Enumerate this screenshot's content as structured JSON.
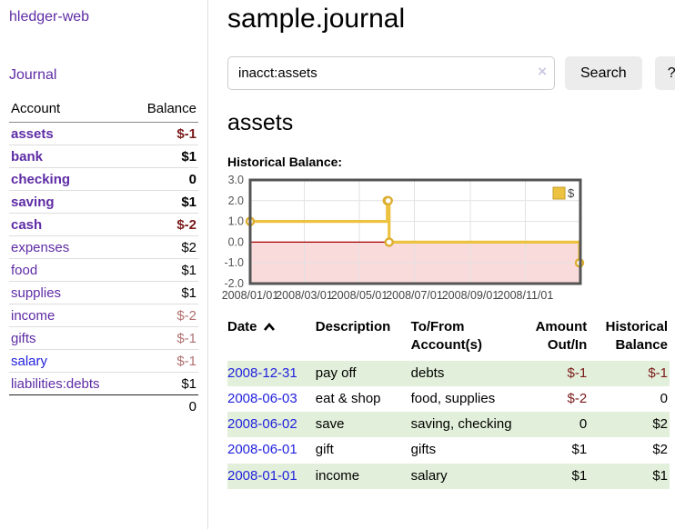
{
  "app": {
    "title": "hledger-web"
  },
  "colors": {
    "link_purple": "#5e2ca5",
    "link_blue": "#2222dd",
    "negative_strong": "#7b1a1a",
    "negative_soft": "#b07070",
    "row_green": "#e2efda",
    "chart_gold": "#EDC240"
  },
  "sidebar": {
    "journal_link": "Journal",
    "accounts_table": {
      "headers": [
        "Account",
        "Balance"
      ],
      "rows": [
        {
          "name": "assets",
          "balance": "$-1",
          "depth": 1,
          "strong": true,
          "negative": true,
          "link_color": "purple"
        },
        {
          "name": "bank",
          "balance": "$1",
          "depth": 2,
          "strong": true,
          "negative": false,
          "link_color": "purple"
        },
        {
          "name": "checking",
          "balance": "0",
          "depth": 3,
          "strong": true,
          "negative": false,
          "link_color": "purple"
        },
        {
          "name": "saving",
          "balance": "$1",
          "depth": 3,
          "strong": true,
          "negative": false,
          "link_color": "purple"
        },
        {
          "name": "cash",
          "balance": "$-2",
          "depth": 2,
          "strong": true,
          "negative": true,
          "link_color": "purple"
        },
        {
          "name": "expenses",
          "balance": "$2",
          "depth": 1,
          "strong": false,
          "negative": false,
          "link_color": "purple"
        },
        {
          "name": "food",
          "balance": "$1",
          "depth": 2,
          "strong": false,
          "negative": false,
          "link_color": "purple"
        },
        {
          "name": "supplies",
          "balance": "$1",
          "depth": 2,
          "strong": false,
          "negative": false,
          "link_color": "purple"
        },
        {
          "name": "income",
          "balance": "$-2",
          "depth": 1,
          "strong": false,
          "negative": true,
          "link_color": "purple"
        },
        {
          "name": "gifts",
          "balance": "$-1",
          "depth": 2,
          "strong": false,
          "negative": true,
          "link_color": "purple"
        },
        {
          "name": "salary",
          "balance": "$-1",
          "depth": 2,
          "strong": false,
          "negative": true,
          "link_color": "blue"
        },
        {
          "name": "liabilities:debts",
          "balance": "$1",
          "depth": 1,
          "strong": false,
          "negative": false,
          "link_color": "purple"
        }
      ],
      "total": "0"
    }
  },
  "main": {
    "page_title": "sample.journal",
    "search": {
      "value": "inacct:assets",
      "clear_icon": "×",
      "button_label": "Search",
      "help_label": "?"
    },
    "account_heading": "assets",
    "register": {
      "headers": [
        "Date",
        "Description",
        "To/From Account(s)",
        "Amount Out/In",
        "Historical Balance"
      ],
      "sort_icon": "chevron-up",
      "rows": [
        {
          "date": "2008-12-31",
          "description": "pay off",
          "accounts": "debts",
          "amount": "$-1",
          "balance": "$-1",
          "amount_negative": true,
          "balance_negative": true,
          "highlighted": true
        },
        {
          "date": "2008-06-03",
          "description": "eat & shop",
          "accounts": "food, supplies",
          "amount": "$-2",
          "balance": "0",
          "amount_negative": true,
          "balance_negative": false,
          "highlighted": false
        },
        {
          "date": "2008-06-02",
          "description": "save",
          "accounts": "saving, checking",
          "amount": "0",
          "balance": "$2",
          "amount_negative": false,
          "balance_negative": false,
          "highlighted": true
        },
        {
          "date": "2008-06-01",
          "description": "gift",
          "accounts": "gifts",
          "amount": "$1",
          "balance": "$2",
          "amount_negative": false,
          "balance_negative": false,
          "highlighted": false
        },
        {
          "date": "2008-01-01",
          "description": "income",
          "accounts": "salary",
          "amount": "$1",
          "balance": "$1",
          "amount_negative": false,
          "balance_negative": false,
          "highlighted": true
        }
      ]
    }
  },
  "chart_data": {
    "type": "line",
    "title": "Historical Balance:",
    "step": "after",
    "series": [
      {
        "name": "$",
        "color": "#EDC240",
        "marker_color": "#dcae2f",
        "points": [
          {
            "date": "2008-01-01",
            "day": 0,
            "value": 1
          },
          {
            "date": "2008-06-01",
            "day": 152,
            "value": 2
          },
          {
            "date": "2008-06-02",
            "day": 153,
            "value": 2
          },
          {
            "date": "2008-06-03",
            "day": 154,
            "value": 0
          },
          {
            "date": "2008-12-31",
            "day": 365,
            "value": -1
          }
        ]
      }
    ],
    "x_domain_days": [
      0,
      366
    ],
    "x_ticks": [
      {
        "label": "2008/01/01",
        "day": 0
      },
      {
        "label": "2008/03/01",
        "day": 60
      },
      {
        "label": "2008/05/01",
        "day": 121
      },
      {
        "label": "2008/07/01",
        "day": 182
      },
      {
        "label": "2008/09/01",
        "day": 244
      },
      {
        "label": "2008/11/01",
        "day": 305
      }
    ],
    "ylim": [
      -2,
      3
    ],
    "y_ticks": [
      3.0,
      2.0,
      1.0,
      0.0,
      -1.0,
      -2.0
    ],
    "grid": true,
    "negative_region_color": "#fadbdb",
    "zero_line_color": "#a40000",
    "border_color": "#545454",
    "legend": {
      "label": "$",
      "swatch_color": "#EDC240",
      "swatch_border": "#c29d28",
      "position": "top-right"
    }
  }
}
